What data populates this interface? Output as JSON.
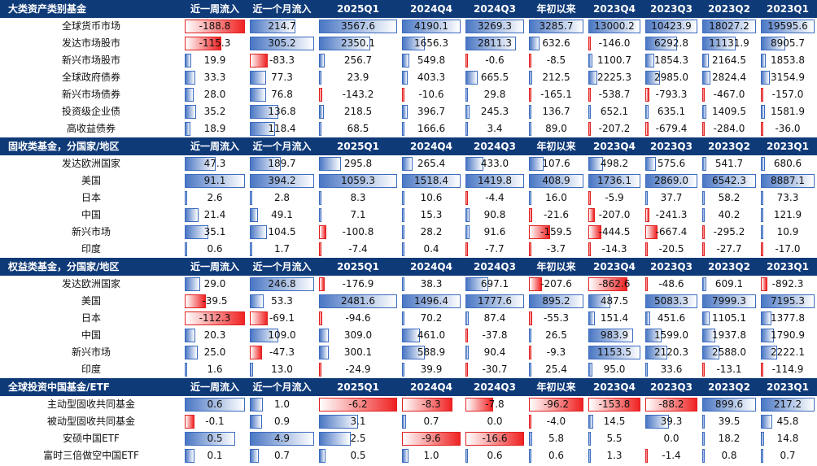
{
  "columns": [
    "近一周流入",
    "近一个月流入",
    "2025Q1",
    "2024Q4",
    "2024Q3",
    "年初以来",
    "2023Q4",
    "2023Q3",
    "2023Q2",
    "2023Q1"
  ],
  "sections": [
    {
      "title": "大类资产类别基金",
      "rows": [
        {
          "name": "全球货币市场",
          "values": [
            "-188.8",
            "214.7",
            "3567.6",
            "4190.1",
            "3269.3",
            "3285.7",
            "13000.2",
            "10423.9",
            "18027.2",
            "19595.6"
          ]
        },
        {
          "name": "发达市场股市",
          "values": [
            "-115.3",
            "305.2",
            "2350.1",
            "1656.3",
            "2811.3",
            "632.6",
            "-146.0",
            "6292.8",
            "11131.9",
            "8905.7"
          ]
        },
        {
          "name": "新兴市场股市",
          "values": [
            "19.9",
            "-83.3",
            "256.7",
            "549.8",
            "-0.6",
            "-8.5",
            "1100.7",
            "1854.3",
            "2164.5",
            "1853.8"
          ]
        },
        {
          "name": "全球政府债券",
          "values": [
            "33.3",
            "77.3",
            "23.9",
            "403.3",
            "665.5",
            "212.5",
            "2225.3",
            "2985.0",
            "2824.4",
            "3154.9"
          ]
        },
        {
          "name": "新兴市场债券",
          "values": [
            "28.0",
            "76.8",
            "-143.2",
            "-10.6",
            "29.8",
            "-165.1",
            "-538.7",
            "-793.3",
            "-467.0",
            "-157.0"
          ]
        },
        {
          "name": "投资级企业债",
          "values": [
            "35.2",
            "136.8",
            "218.5",
            "396.7",
            "245.3",
            "136.7",
            "652.1",
            "635.1",
            "1409.5",
            "1581.9"
          ]
        },
        {
          "name": "高收益债券",
          "values": [
            "18.9",
            "118.4",
            "68.5",
            "166.6",
            "3.4",
            "89.0",
            "-207.2",
            "-679.4",
            "-284.0",
            "-36.0"
          ]
        }
      ]
    },
    {
      "title": "固收类基金，分国家/地区",
      "rows": [
        {
          "name": "发达欧洲国家",
          "values": [
            "47.3",
            "189.7",
            "295.8",
            "265.4",
            "433.0",
            "107.6",
            "498.2",
            "575.6",
            "541.7",
            "680.6"
          ]
        },
        {
          "name": "美国",
          "values": [
            "91.1",
            "394.2",
            "1059.3",
            "1518.4",
            "1419.8",
            "408.9",
            "1736.1",
            "2869.0",
            "6542.3",
            "8887.1"
          ]
        },
        {
          "name": "日本",
          "values": [
            "2.6",
            "2.8",
            "8.3",
            "10.6",
            "-4.4",
            "16.0",
            "-5.9",
            "37.7",
            "58.2",
            "73.3"
          ]
        },
        {
          "name": "中国",
          "values": [
            "21.4",
            "49.1",
            "7.1",
            "15.3",
            "90.8",
            "-21.6",
            "-207.0",
            "-241.3",
            "40.2",
            "121.9"
          ]
        },
        {
          "name": "新兴市场",
          "values": [
            "35.1",
            "104.5",
            "-100.8",
            "28.2",
            "91.6",
            "-159.5",
            "-444.5",
            "-667.4",
            "-295.2",
            "10.9"
          ]
        },
        {
          "name": "印度",
          "values": [
            "0.6",
            "1.7",
            "-7.4",
            "0.4",
            "-7.7",
            "-3.7",
            "-14.3",
            "-20.5",
            "-27.7",
            "-17.0"
          ]
        }
      ]
    },
    {
      "title": "权益类基金，分国家/地区",
      "rows": [
        {
          "name": "发达欧洲国家",
          "values": [
            "29.0",
            "246.8",
            "-176.9",
            "38.3",
            "697.1",
            "-207.6",
            "-862.6",
            "-48.6",
            "609.1",
            "-892.3"
          ]
        },
        {
          "name": "美国",
          "values": [
            "-39.5",
            "53.3",
            "2481.6",
            "1496.4",
            "1777.6",
            "895.2",
            "487.5",
            "5083.3",
            "7999.3",
            "7195.3"
          ]
        },
        {
          "name": "日本",
          "values": [
            "-112.3",
            "-69.1",
            "-94.6",
            "70.2",
            "87.4",
            "-55.3",
            "151.4",
            "451.6",
            "1105.1",
            "1377.8"
          ]
        },
        {
          "name": "中国",
          "values": [
            "20.3",
            "109.0",
            "309.0",
            "461.0",
            "-37.8",
            "26.5",
            "983.9",
            "1599.0",
            "1937.8",
            "1790.9"
          ]
        },
        {
          "name": "新兴市场",
          "values": [
            "25.0",
            "-47.3",
            "300.1",
            "588.9",
            "90.4",
            "-9.3",
            "1153.5",
            "2120.3",
            "2588.0",
            "2222.1"
          ]
        },
        {
          "name": "印度",
          "values": [
            "1.6",
            "13.0",
            "-24.9",
            "39.9",
            "-30.7",
            "25.4",
            "95.0",
            "33.6",
            "-13.1",
            "-114.9"
          ]
        }
      ]
    },
    {
      "title": "全球投资中国基金/ETF",
      "rows": [
        {
          "name": "主动型固收共同基金",
          "values": [
            "0.6",
            "1.0",
            "-6.2",
            "-8.3",
            "-7.8",
            "-96.2",
            "-153.8",
            "-88.2",
            "899.6",
            "217.2"
          ]
        },
        {
          "name": "被动型固收共同基金",
          "values": [
            "-0.1",
            "0.9",
            "3.1",
            "0.7",
            "0.0",
            "-4.0",
            "14.5",
            "39.3",
            "39.5",
            "45.8"
          ]
        },
        {
          "name": "安硕中国ETF",
          "values": [
            "0.5",
            "4.9",
            "2.5",
            "-9.6",
            "-16.6",
            "5.8",
            "5.5",
            "0.0",
            "18.2",
            "14.8"
          ]
        },
        {
          "name": "富时三倍做空中国ETF",
          "values": [
            "0.1",
            "0.7",
            "0.5",
            "1.0",
            "0.6",
            "0.6",
            "1.3",
            "-1.4",
            "0.8",
            "0.7"
          ]
        }
      ]
    }
  ]
}
